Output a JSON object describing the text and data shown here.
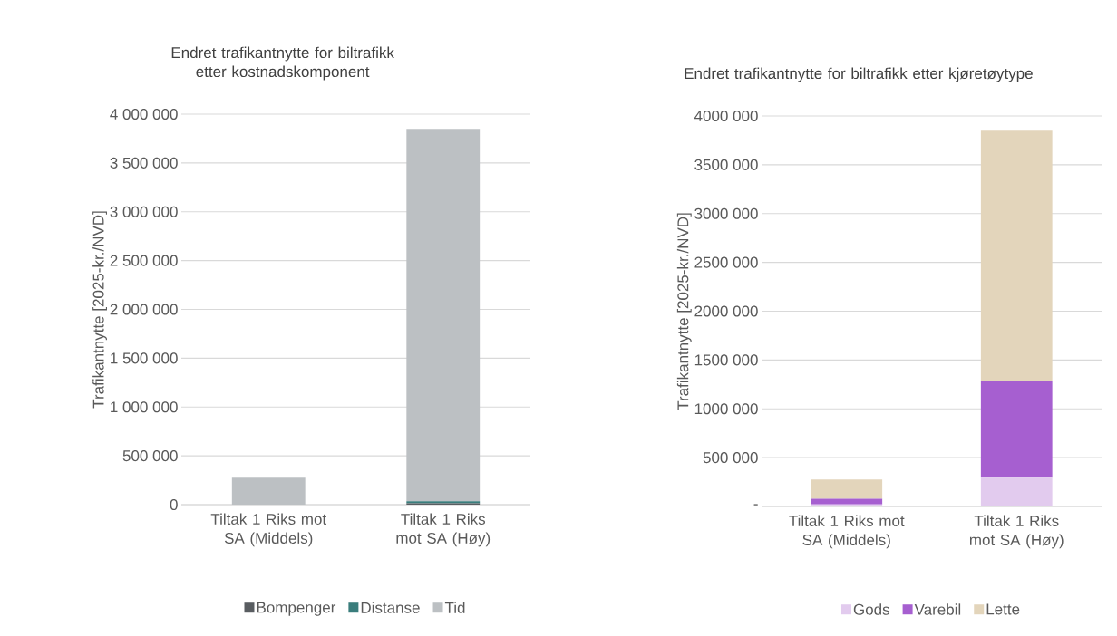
{
  "chart_data": [
    {
      "type": "bar",
      "stacked": true,
      "title": "Endret trafikantnytte for biltrafikk etter kostnadskomponent",
      "ylabel": "Trafikantnytte [2025-kr./NVD]",
      "categories": [
        "Tiltak 1 Riks mot SA (Middels)",
        "Tiltak 1 Riks mot SA (Høy)"
      ],
      "series": [
        {
          "name": "Bompenger",
          "color": "#595d61",
          "values": [
            0,
            15000
          ]
        },
        {
          "name": "Distanse",
          "color": "#3a7d7c",
          "values": [
            0,
            20000
          ]
        },
        {
          "name": "Tid",
          "color": "#bcc0c3",
          "values": [
            275000,
            3815000
          ]
        }
      ],
      "ylim": [
        0,
        4000000
      ],
      "yticks": [
        {
          "value": 0,
          "label": "0"
        },
        {
          "value": 500000,
          "label": "500 000"
        },
        {
          "value": 1000000,
          "label": "1 000 000"
        },
        {
          "value": 1500000,
          "label": "1 500 000"
        },
        {
          "value": 2000000,
          "label": "2 000 000"
        },
        {
          "value": 2500000,
          "label": "2 500 000"
        },
        {
          "value": 3000000,
          "label": "3 000 000"
        },
        {
          "value": 3500000,
          "label": "3 500 000"
        },
        {
          "value": 4000000,
          "label": "4 000 000"
        }
      ],
      "grid": "y",
      "legend": "bottom"
    },
    {
      "type": "bar",
      "stacked": true,
      "title": "Endret trafikantnytte for biltrafikk etter kjøretøytype",
      "ylabel": "Trafikantnytte [2025-kr./NVD]",
      "categories": [
        "Tiltak 1 Riks mot SA (Middels)",
        "Tiltak 1 Riks mot SA (Høy)"
      ],
      "series": [
        {
          "name": "Gods",
          "color": "#e2cbee",
          "values": [
            20000,
            295000
          ]
        },
        {
          "name": "Varebil",
          "color": "#a65fd0",
          "values": [
            60000,
            985000
          ]
        },
        {
          "name": "Lette",
          "color": "#e3d5bb",
          "values": [
            195000,
            2570000
          ]
        }
      ],
      "ylim": [
        0,
        4000000
      ],
      "yticks": [
        {
          "value": 0,
          "label": "-"
        },
        {
          "value": 500000,
          "label": "500 000"
        },
        {
          "value": 1000000,
          "label": "1000 000"
        },
        {
          "value": 1500000,
          "label": "1500 000"
        },
        {
          "value": 2000000,
          "label": "2000 000"
        },
        {
          "value": 2500000,
          "label": "2500 000"
        },
        {
          "value": 3000000,
          "label": "3000 000"
        },
        {
          "value": 3500000,
          "label": "3500 000"
        },
        {
          "value": 4000000,
          "label": "4000 000"
        }
      ],
      "grid": "y",
      "legend": "bottom"
    }
  ]
}
